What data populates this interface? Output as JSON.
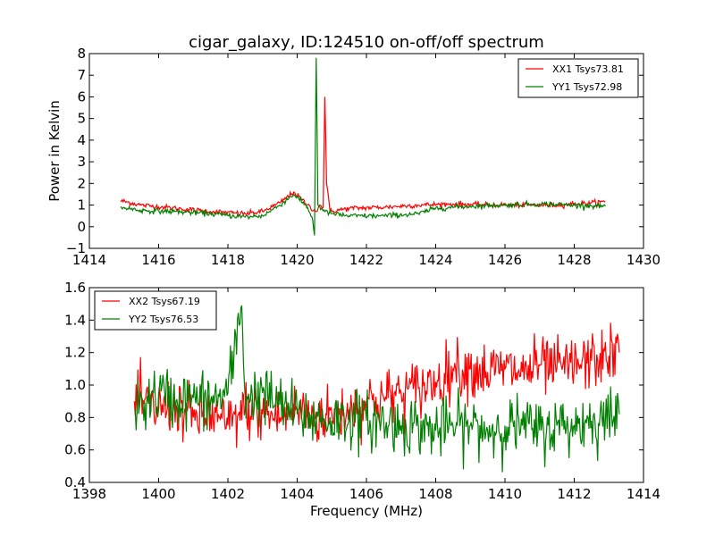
{
  "chart_data": [
    {
      "type": "line",
      "title": "cigar_galaxy, ID:124510 on-off/off spectrum",
      "xlabel": "",
      "ylabel": "Power in Kelvin",
      "xlim": [
        1414,
        1430
      ],
      "ylim": [
        -1,
        8
      ],
      "xticks": [
        "1414",
        "1416",
        "1418",
        "1420",
        "1422",
        "1424",
        "1426",
        "1428",
        "1430"
      ],
      "yticks": [
        "−1",
        "0",
        "1",
        "2",
        "3",
        "4",
        "5",
        "6",
        "7",
        "8"
      ],
      "grid": false,
      "legend_position": "top-right",
      "series": [
        {
          "name": "XX1 Tsys73.81",
          "color": "#ff0000",
          "points": [
            [
              1414.9,
              1.2
            ],
            [
              1415.5,
              1.0
            ],
            [
              1416.5,
              0.85
            ],
            [
              1417.5,
              0.7
            ],
            [
              1418.5,
              0.6
            ],
            [
              1419.0,
              0.7
            ],
            [
              1419.5,
              1.1
            ],
            [
              1419.9,
              1.6
            ],
            [
              1420.3,
              1.0
            ],
            [
              1420.55,
              0.7
            ],
            [
              1420.65,
              1.0
            ],
            [
              1420.75,
              0.9
            ],
            [
              1420.8,
              6.0
            ],
            [
              1420.85,
              2.0
            ],
            [
              1420.95,
              0.7
            ],
            [
              1421.5,
              0.85
            ],
            [
              1422.5,
              0.9
            ],
            [
              1423.5,
              1.0
            ],
            [
              1424.5,
              1.05
            ],
            [
              1425.5,
              1.0
            ],
            [
              1426.5,
              1.0
            ],
            [
              1427.5,
              1.0
            ],
            [
              1428.5,
              1.1
            ],
            [
              1428.9,
              1.15
            ]
          ]
        },
        {
          "name": "YY1 Tsys72.98",
          "color": "#008000",
          "points": [
            [
              1414.9,
              0.9
            ],
            [
              1415.5,
              0.75
            ],
            [
              1416.5,
              0.7
            ],
            [
              1417.5,
              0.6
            ],
            [
              1418.5,
              0.45
            ],
            [
              1419.0,
              0.5
            ],
            [
              1419.5,
              1.0
            ],
            [
              1419.9,
              1.5
            ],
            [
              1420.3,
              0.9
            ],
            [
              1420.45,
              0.3
            ],
            [
              1420.5,
              -0.4
            ],
            [
              1420.55,
              7.8
            ],
            [
              1420.6,
              1.0
            ],
            [
              1420.8,
              0.7
            ],
            [
              1421.0,
              0.6
            ],
            [
              1421.5,
              0.5
            ],
            [
              1422.5,
              0.5
            ],
            [
              1423.5,
              0.6
            ],
            [
              1424.0,
              0.85
            ],
            [
              1425.0,
              0.95
            ],
            [
              1426.0,
              1.0
            ],
            [
              1427.0,
              1.05
            ],
            [
              1428.0,
              1.0
            ],
            [
              1428.9,
              0.95
            ]
          ]
        }
      ]
    },
    {
      "type": "line",
      "title": "",
      "xlabel": "Frequency (MHz)",
      "ylabel": "",
      "xlim": [
        1398,
        1414
      ],
      "ylim": [
        0.4,
        1.6
      ],
      "xticks": [
        "1398",
        "1400",
        "1402",
        "1404",
        "1406",
        "1408",
        "1410",
        "1412",
        "1414"
      ],
      "yticks": [
        "0.4",
        "0.6",
        "0.8",
        "1.0",
        "1.2",
        "1.4",
        "1.6"
      ],
      "grid": false,
      "legend_position": "top-left",
      "series": [
        {
          "name": "XX2 Tsys67.19",
          "color": "#ff0000",
          "points": [
            [
              1399.3,
              0.9
            ],
            [
              1400.0,
              0.85
            ],
            [
              1400.5,
              0.88
            ],
            [
              1401.0,
              0.8
            ],
            [
              1401.5,
              0.82
            ],
            [
              1402.0,
              0.75
            ],
            [
              1402.5,
              0.85
            ],
            [
              1403.0,
              0.82
            ],
            [
              1403.5,
              0.8
            ],
            [
              1404.0,
              0.85
            ],
            [
              1404.5,
              0.8
            ],
            [
              1405.0,
              0.82
            ],
            [
              1405.5,
              0.85
            ],
            [
              1406.0,
              0.9
            ],
            [
              1406.5,
              0.92
            ],
            [
              1407.0,
              0.95
            ],
            [
              1407.5,
              0.98
            ],
            [
              1408.0,
              1.02
            ],
            [
              1408.5,
              1.1
            ],
            [
              1409.0,
              1.1
            ],
            [
              1409.5,
              1.08
            ],
            [
              1410.0,
              1.1
            ],
            [
              1410.5,
              1.08
            ],
            [
              1411.0,
              1.12
            ],
            [
              1411.5,
              1.1
            ],
            [
              1412.0,
              1.12
            ],
            [
              1412.5,
              1.15
            ],
            [
              1413.0,
              1.18
            ],
            [
              1413.3,
              1.2
            ]
          ]
        },
        {
          "name": "YY2 Tsys76.53",
          "color": "#008000",
          "points": [
            [
              1399.3,
              0.85
            ],
            [
              1400.0,
              0.95
            ],
            [
              1400.5,
              0.9
            ],
            [
              1401.0,
              0.92
            ],
            [
              1401.5,
              0.9
            ],
            [
              1402.0,
              0.95
            ],
            [
              1402.4,
              1.49
            ],
            [
              1402.5,
              0.92
            ],
            [
              1403.0,
              0.95
            ],
            [
              1403.5,
              0.88
            ],
            [
              1404.0,
              0.82
            ],
            [
              1404.5,
              0.8
            ],
            [
              1405.0,
              0.78
            ],
            [
              1405.5,
              0.8
            ],
            [
              1406.0,
              0.78
            ],
            [
              1406.5,
              0.77
            ],
            [
              1407.0,
              0.75
            ],
            [
              1407.5,
              0.75
            ],
            [
              1408.0,
              0.72
            ],
            [
              1408.5,
              0.75
            ],
            [
              1409.0,
              0.75
            ],
            [
              1409.5,
              0.72
            ],
            [
              1410.0,
              0.75
            ],
            [
              1410.5,
              0.75
            ],
            [
              1411.0,
              0.72
            ],
            [
              1411.5,
              0.75
            ],
            [
              1412.0,
              0.75
            ],
            [
              1412.5,
              0.78
            ],
            [
              1413.0,
              0.8
            ],
            [
              1413.3,
              0.82
            ]
          ]
        }
      ]
    }
  ]
}
